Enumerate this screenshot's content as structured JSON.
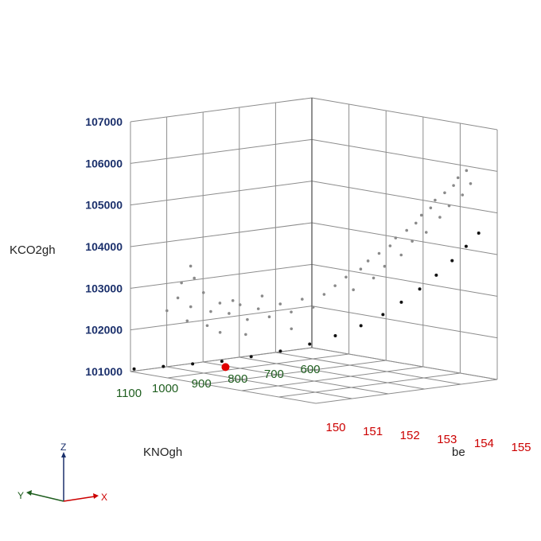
{
  "chart_data": {
    "type": "scatter",
    "projection": "3d",
    "axes": {
      "x": {
        "label": "be",
        "range": [
          150,
          155
        ],
        "ticks": [
          "150",
          "151",
          "152",
          "153",
          "154",
          "155"
        ],
        "tick_color": "#cc0000"
      },
      "y": {
        "label": "KNOgh",
        "range": [
          1100,
          600
        ],
        "ticks": [
          "1100",
          "1000",
          "900",
          "800",
          "700",
          "600"
        ],
        "tick_color": "#1f5e1f"
      },
      "z": {
        "label": "KCO2gh",
        "range": [
          101000,
          107000
        ],
        "ticks": [
          "101000",
          "102000",
          "103000",
          "104000",
          "105000",
          "106000",
          "107000"
        ],
        "tick_color": "#1a2f6b"
      }
    },
    "grid": true,
    "series": [
      {
        "style": "gray",
        "points": [
          [
            150.2,
            1020,
            102400
          ],
          [
            150.3,
            1000,
            102700
          ],
          [
            150.3,
            990,
            103050
          ],
          [
            150.4,
            975,
            103450
          ],
          [
            150.4,
            965,
            103150
          ],
          [
            150.5,
            985,
            102500
          ],
          [
            150.5,
            950,
            102800
          ],
          [
            150.6,
            940,
            102350
          ],
          [
            150.6,
            1005,
            102200
          ],
          [
            150.7,
            925,
            102550
          ],
          [
            150.7,
            960,
            102050
          ],
          [
            150.8,
            910,
            102300
          ],
          [
            150.9,
            890,
            102500
          ],
          [
            150.9,
            945,
            101900
          ],
          [
            151.0,
            880,
            102150
          ],
          [
            151.0,
            920,
            102650
          ],
          [
            151.1,
            860,
            102400
          ],
          [
            151.2,
            840,
            102200
          ],
          [
            151.2,
            905,
            101850
          ],
          [
            151.3,
            820,
            102500
          ],
          [
            151.3,
            870,
            102750
          ],
          [
            151.4,
            800,
            102300
          ],
          [
            151.5,
            780,
            102600
          ],
          [
            151.6,
            760,
            102400
          ],
          [
            151.6,
            820,
            101950
          ],
          [
            151.7,
            740,
            102700
          ],
          [
            151.8,
            720,
            102900
          ],
          [
            151.9,
            700,
            103100
          ],
          [
            152.0,
            690,
            102800
          ],
          [
            152.1,
            680,
            103300
          ],
          [
            152.2,
            670,
            103500
          ],
          [
            152.3,
            665,
            103100
          ],
          [
            152.4,
            660,
            103700
          ],
          [
            152.5,
            655,
            103400
          ],
          [
            152.6,
            650,
            103900
          ],
          [
            152.7,
            645,
            104100
          ],
          [
            152.8,
            640,
            103700
          ],
          [
            152.9,
            635,
            104300
          ],
          [
            153.0,
            630,
            104050
          ],
          [
            153.1,
            630,
            104500
          ],
          [
            153.2,
            625,
            104700
          ],
          [
            153.3,
            622,
            104300
          ],
          [
            153.4,
            620,
            104900
          ],
          [
            153.5,
            618,
            105100
          ],
          [
            153.6,
            615,
            104700
          ],
          [
            153.7,
            612,
            105300
          ],
          [
            153.8,
            610,
            105000
          ],
          [
            153.9,
            608,
            105500
          ],
          [
            154.0,
            606,
            105700
          ],
          [
            154.1,
            604,
            105300
          ],
          [
            154.2,
            603,
            105900
          ],
          [
            154.3,
            602,
            105600
          ]
        ]
      },
      {
        "style": "black",
        "points": [
          [
            150.0,
            1090,
            101050
          ],
          [
            150.3,
            1040,
            101100
          ],
          [
            150.6,
            990,
            101150
          ],
          [
            150.9,
            940,
            101200
          ],
          [
            151.2,
            890,
            101300
          ],
          [
            151.5,
            840,
            101420
          ],
          [
            151.8,
            790,
            101580
          ],
          [
            152.1,
            750,
            101780
          ],
          [
            152.4,
            710,
            102020
          ],
          [
            152.7,
            680,
            102300
          ],
          [
            153.0,
            660,
            102620
          ],
          [
            153.3,
            640,
            102960
          ],
          [
            153.6,
            625,
            103320
          ],
          [
            153.9,
            612,
            103700
          ],
          [
            154.2,
            604,
            104080
          ],
          [
            154.5,
            600,
            104440
          ]
        ]
      },
      {
        "style": "highlight",
        "points": [
          [
            150.9,
            930,
            101050
          ]
        ]
      }
    ]
  },
  "triad": {
    "z": "Z",
    "y": "Y",
    "x": "X"
  }
}
